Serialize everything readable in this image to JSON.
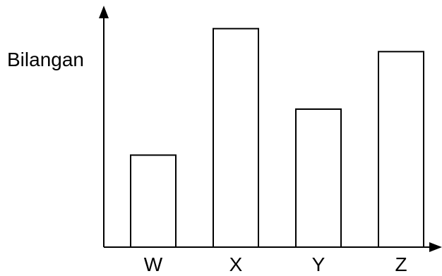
{
  "chart_data": {
    "type": "bar",
    "title": "",
    "xlabel": "",
    "ylabel": "Bilangan",
    "categories": [
      "W",
      "X",
      "Y",
      "Z"
    ],
    "values": [
      4,
      9.5,
      6,
      8.5
    ],
    "ylim": [
      0,
      10.5
    ],
    "grid": false,
    "axis_ticks_numeric": false,
    "colors": {
      "bar_fill": "#ffffff",
      "bar_stroke": "#000000",
      "axis": "#000000"
    }
  }
}
